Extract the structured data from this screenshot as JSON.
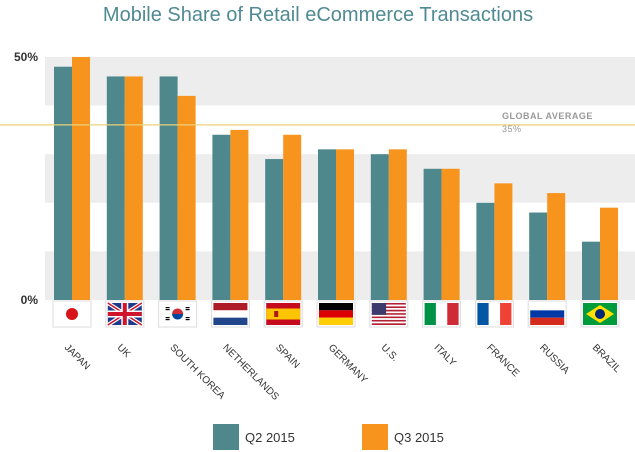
{
  "chart_data": {
    "type": "bar",
    "title": "Mobile Share of Retail eCommerce Transactions",
    "categories": [
      "JAPAN",
      "UK",
      "SOUTH KOREA",
      "NETHERLANDS",
      "SPAIN",
      "GERMANY",
      "U.S.",
      "ITALY",
      "FRANCE",
      "RUSSIA",
      "BRAZIL"
    ],
    "series": [
      {
        "name": "Q2 2015",
        "color": "#4e878c",
        "values": [
          48,
          46,
          46,
          34,
          29,
          31,
          30,
          27,
          20,
          18,
          12
        ]
      },
      {
        "name": "Q3 2015",
        "color": "#f7941d",
        "values": [
          50,
          46,
          42,
          35,
          34,
          31,
          31,
          27,
          24,
          22,
          19
        ]
      }
    ],
    "ylim": [
      0,
      50
    ],
    "yticks": [
      {
        "value": 50,
        "label": "50%"
      },
      {
        "value": 0,
        "label": "0%"
      }
    ],
    "grid": "alternating bands",
    "reference_line": {
      "value": 35,
      "label": "GLOBAL AVERAGE",
      "value_label": "35%",
      "color": "#e8d27a"
    },
    "legend": "bottom",
    "flags": [
      "japan-flag-icon",
      "uk-flag-icon",
      "south-korea-flag-icon",
      "netherlands-flag-icon",
      "spain-flag-icon",
      "germany-flag-icon",
      "us-flag-icon",
      "italy-flag-icon",
      "france-flag-icon",
      "russia-flag-icon",
      "brazil-flag-icon"
    ]
  }
}
